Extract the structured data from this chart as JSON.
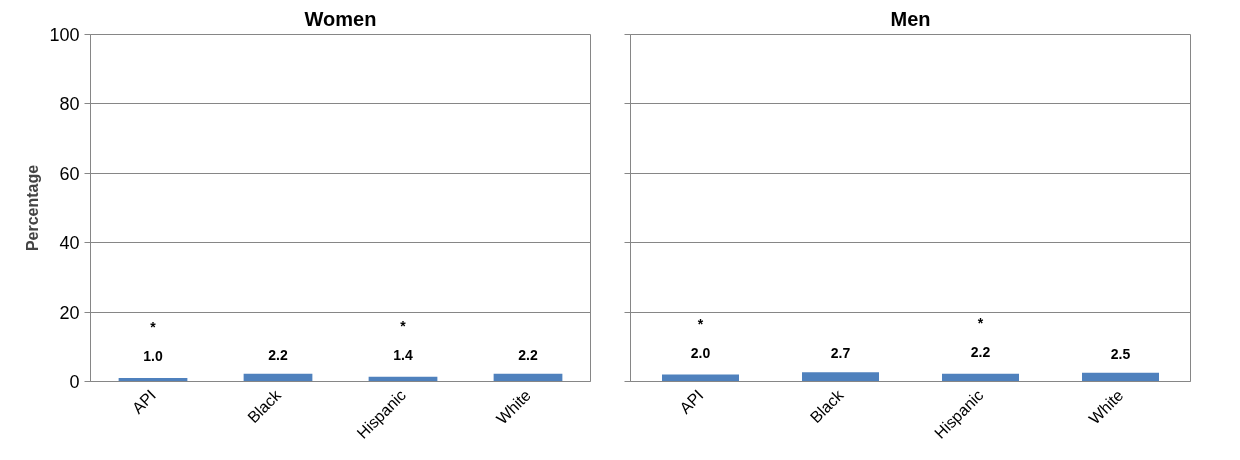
{
  "chart_data": [
    {
      "type": "bar",
      "title": "Women",
      "ylabel": "Percentage",
      "categories": [
        "API",
        "Black",
        "Hispanic",
        "White"
      ],
      "values": [
        1.0,
        2.2,
        1.4,
        2.2
      ],
      "value_labels": [
        "*\n\n1.0",
        "2.2",
        "*\n\n1.4",
        "2.2"
      ],
      "color": "#4f81bd",
      "ylim": [
        0,
        100
      ],
      "yticks": [
        0,
        20,
        40,
        60,
        80,
        100
      ],
      "grid": "y"
    },
    {
      "type": "bar",
      "title": "Men",
      "categories": [
        "API",
        "Black",
        "Hispanic",
        "White"
      ],
      "values": [
        2.0,
        2.7,
        2.2,
        2.5
      ],
      "value_labels": [
        "*\n\n2.0",
        "2.7",
        "*\n\n2.2",
        "2.5"
      ],
      "color": "#4f81bd",
      "ylim": [
        0,
        100
      ],
      "yticks": [
        0,
        20,
        40,
        60,
        80,
        100
      ],
      "grid": "y",
      "tick_labels": "x"
    }
  ]
}
